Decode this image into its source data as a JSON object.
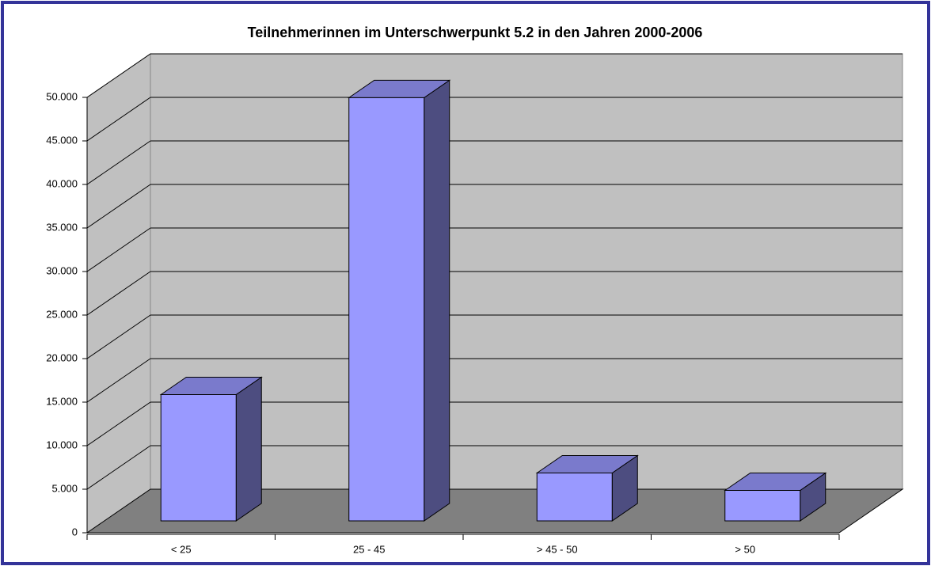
{
  "chart_data": {
    "type": "bar3d",
    "title": "Teilnehmerinnen im Unterschwerpunkt 5.2 in den Jahren 2000-2006",
    "categories": [
      "< 25",
      "25 - 45",
      "> 45 - 50",
      "> 50"
    ],
    "values": [
      14500,
      48600,
      5500,
      3500
    ],
    "color": "#9999ff",
    "ylim": [
      0,
      50000
    ],
    "yticks": [
      0,
      {
        "value": 5000,
        "label": "5.000"
      },
      {
        "value": 10000,
        "label": "10.000"
      },
      {
        "value": 15000,
        "label": "15.000"
      },
      {
        "value": 20000,
        "label": "20.000"
      },
      {
        "value": 25000,
        "label": "25.000"
      },
      {
        "value": 30000,
        "label": "30.000"
      },
      {
        "value": 35000,
        "label": "35.000"
      },
      {
        "value": 40000,
        "label": "40.000"
      },
      {
        "value": 45000,
        "label": "45.000"
      },
      {
        "value": 50000,
        "label": "50.000"
      }
    ],
    "grid": true
  }
}
